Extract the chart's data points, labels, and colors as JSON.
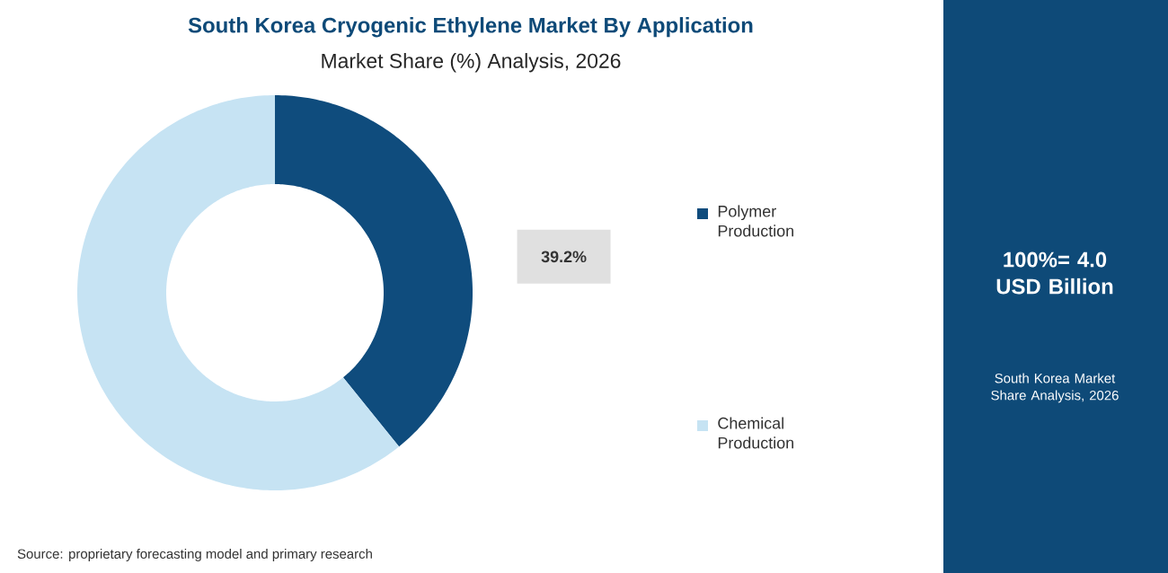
{
  "chart_data": {
    "type": "donut",
    "title": "South Korea Cryogenic Ethylene Market By Application",
    "subtitle": "Market Share (%) Analysis, 2026",
    "categories": [
      "Polymer Production",
      "Chemical Production"
    ],
    "values": [
      39.2,
      60.8
    ],
    "colors": [
      "#0f4c7d",
      "#c6e3f3"
    ],
    "value_labels": [
      "39.2%",
      null
    ],
    "legend": "right",
    "annotations": [
      "100%= 4.0 USD Billion",
      "South Korea Market Share Analysis, 2026",
      "Source: proprietary forecasting model and primary research"
    ]
  }
}
